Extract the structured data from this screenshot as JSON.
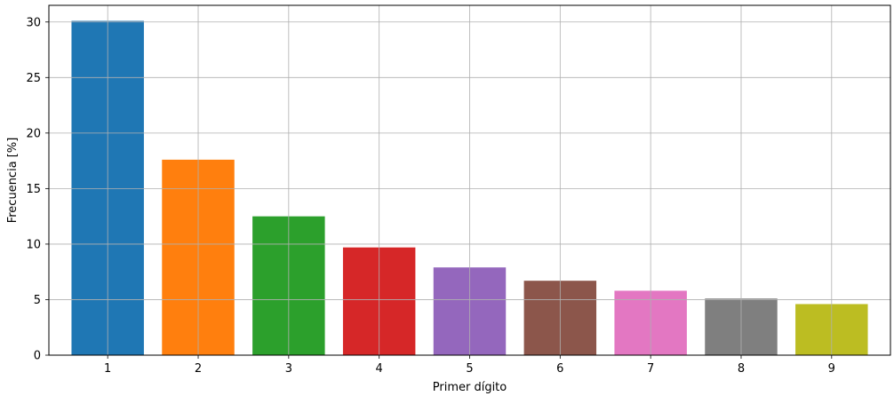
{
  "chart_data": {
    "type": "bar",
    "categories": [
      "1",
      "2",
      "3",
      "4",
      "5",
      "6",
      "7",
      "8",
      "9"
    ],
    "values": [
      30.1,
      17.6,
      12.5,
      9.7,
      7.9,
      6.7,
      5.8,
      5.1,
      4.6
    ],
    "colors": [
      "#1f77b4",
      "#ff7f0e",
      "#2ca02c",
      "#d62728",
      "#9467bd",
      "#8c564b",
      "#e377c2",
      "#7f7f7f",
      "#bcbd22"
    ],
    "xlabel": "Primer dígito",
    "ylabel": "Frecuencia [%]",
    "ylim": [
      0,
      31.5
    ],
    "yticks": [
      "0",
      "5",
      "10",
      "15",
      "20",
      "25",
      "30"
    ],
    "grid": true
  }
}
